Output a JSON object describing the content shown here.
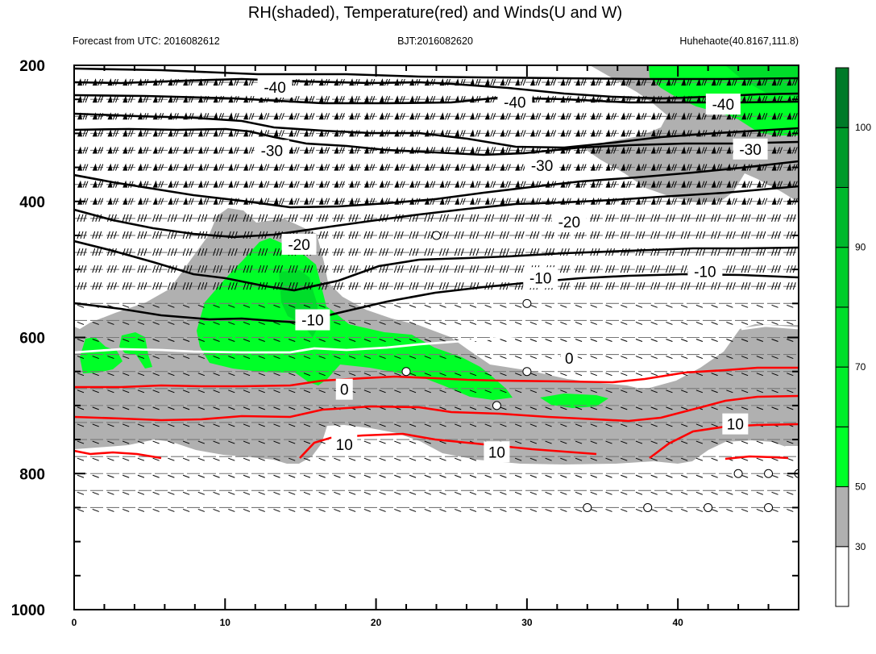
{
  "chart_data": {
    "type": "contour",
    "title": "RH(shaded), Temperature(red) and Winds(U and W)",
    "left_subtitle": "Forecast from UTC: 2016082612",
    "center_subtitle": "BJT:2016082620",
    "right_subtitle": "Huhehaote(40.8167,111.8)",
    "x_ticks": [
      "0",
      "10",
      "20",
      "30",
      "40"
    ],
    "xlim": [
      0,
      48
    ],
    "y_ticks": [
      "200",
      "400",
      "600",
      "800",
      "1000"
    ],
    "ylim": [
      200,
      1000
    ],
    "y_inverted": true,
    "colorbar": {
      "labels": [
        "30",
        "50",
        "70",
        "90",
        "100"
      ],
      "levels": [
        {
          "from": 0,
          "to": 30,
          "color": "#ffffff"
        },
        {
          "from": 30,
          "to": 50,
          "color": "#b0b0b0"
        },
        {
          "from": 50,
          "to": 60,
          "color": "#00ff28"
        },
        {
          "from": 60,
          "to": 70,
          "color": "#00ee2a"
        },
        {
          "from": 70,
          "to": 80,
          "color": "#00de2a"
        },
        {
          "from": 80,
          "to": 90,
          "color": "#00cd2a"
        },
        {
          "from": 90,
          "to": 95,
          "color": "#00b82c"
        },
        {
          "from": 95,
          "to": 100,
          "color": "#009a2a"
        },
        {
          "from": 100,
          "to": 110,
          "color": "#007a28"
        }
      ]
    },
    "wind_levels": [
      225,
      250,
      275,
      300,
      325,
      350,
      375,
      400,
      425,
      450,
      475,
      500,
      525,
      550,
      575,
      600,
      625,
      650,
      675,
      700,
      725,
      750,
      775,
      800,
      825,
      850
    ],
    "isotherm_labels": [
      {
        "text": "-40",
        "x": 13.3,
        "y": 232
      },
      {
        "text": "-40",
        "x": 29.2,
        "y": 254
      },
      {
        "text": "-40",
        "x": 43.0,
        "y": 257
      },
      {
        "text": "-30",
        "x": 13.1,
        "y": 325
      },
      {
        "text": "-30",
        "x": 31.0,
        "y": 347
      },
      {
        "text": "-30",
        "x": 44.8,
        "y": 323
      },
      {
        "text": "-20",
        "x": 14.9,
        "y": 463
      },
      {
        "text": "-20",
        "x": 32.8,
        "y": 430
      },
      {
        "text": "-10",
        "x": 15.8,
        "y": 574
      },
      {
        "text": "-10",
        "x": 30.9,
        "y": 512
      },
      {
        "text": "-10",
        "x": 41.8,
        "y": 503
      },
      {
        "text": "0",
        "x": 32.8,
        "y": 630
      },
      {
        "text": "0",
        "x": 17.9,
        "y": 676
      },
      {
        "text": "10",
        "x": 17.9,
        "y": 757
      },
      {
        "text": "10",
        "x": 28.0,
        "y": 768
      },
      {
        "text": "10",
        "x": 43.8,
        "y": 727
      }
    ]
  }
}
